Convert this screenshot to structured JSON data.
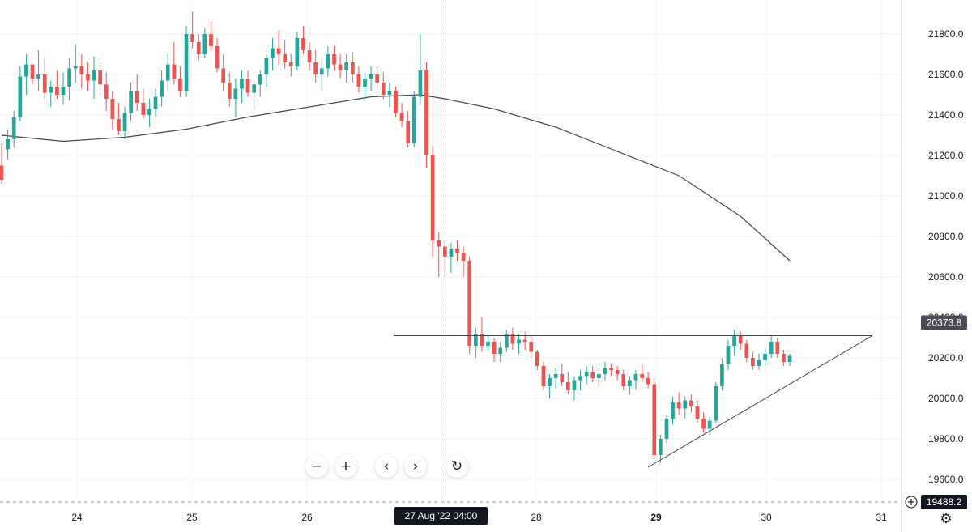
{
  "chart_data": {
    "type": "candlestick",
    "price_axis": {
      "ticks": [
        "21800.0",
        "21600.0",
        "21400.0",
        "21200.0",
        "21000.0",
        "20800.0",
        "20600.0",
        "20400.0",
        "20200.0",
        "20000.0",
        "19800.0",
        "19600.0"
      ],
      "tick_values": [
        21800,
        21600,
        21400,
        21200,
        21000,
        20800,
        20600,
        20400,
        20200,
        20000,
        19800,
        19600
      ],
      "ylim": [
        19488.2,
        21980
      ]
    },
    "time_axis": {
      "labels": [
        "24",
        "25",
        "26",
        "28",
        "29",
        "30",
        "31"
      ],
      "bold": [
        false,
        false,
        false,
        false,
        true,
        false,
        false
      ]
    },
    "crosshair_time_label": "27 Aug '22  04:00",
    "last_price_label": "20373.8",
    "last_price": 20373.8,
    "crosshair_price_label": "19488.2",
    "crosshair_price": 19488.2,
    "add_symbol_icon": "plus-circle-icon",
    "candle_series": [
      [
        21150,
        21260,
        21060,
        21080
      ],
      [
        21230,
        21330,
        21180,
        21280
      ],
      [
        21280,
        21420,
        21240,
        21390
      ],
      [
        21390,
        21640,
        21370,
        21590
      ],
      [
        21590,
        21700,
        21500,
        21650
      ],
      [
        21650,
        21640,
        21550,
        21580
      ],
      [
        21580,
        21720,
        21520,
        21600
      ],
      [
        21600,
        21680,
        21480,
        21510
      ],
      [
        21510,
        21570,
        21440,
        21540
      ],
      [
        21540,
        21620,
        21480,
        21500
      ],
      [
        21500,
        21610,
        21450,
        21540
      ],
      [
        21540,
        21680,
        21470,
        21630
      ],
      [
        21630,
        21750,
        21560,
        21640
      ],
      [
        21640,
        21700,
        21530,
        21600
      ],
      [
        21600,
        21660,
        21520,
        21570
      ],
      [
        21570,
        21690,
        21480,
        21620
      ],
      [
        21620,
        21660,
        21500,
        21550
      ],
      [
        21550,
        21610,
        21420,
        21480
      ],
      [
        21480,
        21520,
        21330,
        21380
      ],
      [
        21380,
        21460,
        21300,
        21320
      ],
      [
        21320,
        21440,
        21280,
        21410
      ],
      [
        21410,
        21560,
        21370,
        21520
      ],
      [
        21520,
        21600,
        21420,
        21460
      ],
      [
        21460,
        21530,
        21380,
        21400
      ],
      [
        21400,
        21480,
        21340,
        21430
      ],
      [
        21430,
        21530,
        21390,
        21490
      ],
      [
        21490,
        21620,
        21440,
        21570
      ],
      [
        21570,
        21700,
        21520,
        21650
      ],
      [
        21650,
        21760,
        21550,
        21580
      ],
      [
        21580,
        21640,
        21490,
        21520
      ],
      [
        21520,
        21840,
        21490,
        21800
      ],
      [
        21800,
        21910,
        21730,
        21760
      ],
      [
        21760,
        21800,
        21670,
        21700
      ],
      [
        21700,
        21830,
        21680,
        21800
      ],
      [
        21800,
        21860,
        21720,
        21740
      ],
      [
        21740,
        21780,
        21610,
        21630
      ],
      [
        21630,
        21700,
        21520,
        21560
      ],
      [
        21560,
        21610,
        21440,
        21480
      ],
      [
        21480,
        21580,
        21390,
        21530
      ],
      [
        21530,
        21620,
        21460,
        21580
      ],
      [
        21580,
        21620,
        21490,
        21510
      ],
      [
        21510,
        21570,
        21430,
        21550
      ],
      [
        21550,
        21620,
        21490,
        21600
      ],
      [
        21600,
        21700,
        21540,
        21680
      ],
      [
        21680,
        21780,
        21620,
        21730
      ],
      [
        21730,
        21820,
        21650,
        21700
      ],
      [
        21700,
        21770,
        21630,
        21660
      ],
      [
        21660,
        21700,
        21590,
        21640
      ],
      [
        21640,
        21810,
        21620,
        21780
      ],
      [
        21780,
        21840,
        21700,
        21720
      ],
      [
        21720,
        21760,
        21620,
        21660
      ],
      [
        21660,
        21720,
        21560,
        21600
      ],
      [
        21600,
        21680,
        21520,
        21630
      ],
      [
        21630,
        21740,
        21590,
        21700
      ],
      [
        21700,
        21740,
        21620,
        21650
      ],
      [
        21650,
        21700,
        21580,
        21620
      ],
      [
        21620,
        21700,
        21560,
        21660
      ],
      [
        21660,
        21710,
        21560,
        21600
      ],
      [
        21600,
        21640,
        21510,
        21540
      ],
      [
        21540,
        21610,
        21480,
        21580
      ],
      [
        21580,
        21640,
        21520,
        21600
      ],
      [
        21600,
        21640,
        21530,
        21560
      ],
      [
        21560,
        21610,
        21480,
        21500
      ],
      [
        21500,
        21560,
        21440,
        21520
      ],
      [
        21520,
        21540,
        21390,
        21410
      ],
      [
        21410,
        21460,
        21340,
        21370
      ],
      [
        21370,
        21420,
        21240,
        21260
      ],
      [
        21260,
        21520,
        21240,
        21490
      ],
      [
        21490,
        21800,
        21450,
        21620
      ],
      [
        21620,
        21660,
        21140,
        21200
      ],
      [
        21200,
        21250,
        20700,
        20780
      ],
      [
        20780,
        20820,
        20600,
        20750
      ],
      [
        20750,
        20780,
        20600,
        20700
      ],
      [
        20700,
        20770,
        20620,
        20740
      ],
      [
        20740,
        20780,
        20680,
        20720
      ],
      [
        20720,
        20750,
        20600,
        20680
      ],
      [
        20680,
        20700,
        20220,
        20260
      ],
      [
        20260,
        20350,
        20200,
        20320
      ],
      [
        20320,
        20400,
        20230,
        20260
      ],
      [
        20260,
        20310,
        20230,
        20280
      ],
      [
        20280,
        20300,
        20180,
        20220
      ],
      [
        20220,
        20280,
        20180,
        20250
      ],
      [
        20250,
        20340,
        20230,
        20320
      ],
      [
        20320,
        20350,
        20240,
        20270
      ],
      [
        20270,
        20320,
        20220,
        20290
      ],
      [
        20290,
        20330,
        20240,
        20280
      ],
      [
        20280,
        20310,
        20200,
        20230
      ],
      [
        20230,
        20240,
        20140,
        20160
      ],
      [
        20160,
        20180,
        20040,
        20060
      ],
      [
        20060,
        20120,
        20000,
        20100
      ],
      [
        20100,
        20150,
        20050,
        20120
      ],
      [
        20120,
        20170,
        20060,
        20080
      ],
      [
        20080,
        20130,
        20020,
        20040
      ],
      [
        20040,
        20110,
        19990,
        20090
      ],
      [
        20090,
        20140,
        20040,
        20110
      ],
      [
        20110,
        20160,
        20070,
        20130
      ],
      [
        20130,
        20160,
        20080,
        20100
      ],
      [
        20100,
        20150,
        20060,
        20120
      ],
      [
        20120,
        20180,
        20090,
        20150
      ],
      [
        20150,
        20170,
        20110,
        20140
      ],
      [
        20140,
        20160,
        20090,
        20120
      ],
      [
        20120,
        20140,
        20040,
        20060
      ],
      [
        20060,
        20110,
        20020,
        20090
      ],
      [
        20090,
        20140,
        20040,
        20120
      ],
      [
        20120,
        20170,
        20080,
        20100
      ],
      [
        20100,
        20130,
        20050,
        20070
      ],
      [
        20070,
        20100,
        19700,
        19720
      ],
      [
        19720,
        19820,
        19680,
        19800
      ],
      [
        19800,
        19920,
        19780,
        19900
      ],
      [
        19900,
        20010,
        19870,
        19980
      ],
      [
        19980,
        20030,
        19920,
        19950
      ],
      [
        19950,
        20010,
        19900,
        19990
      ],
      [
        19990,
        20020,
        19930,
        19960
      ],
      [
        19960,
        19990,
        19880,
        19900
      ],
      [
        19900,
        19930,
        19830,
        19850
      ],
      [
        19850,
        19910,
        19820,
        19890
      ],
      [
        19890,
        20080,
        19880,
        20060
      ],
      [
        20060,
        20200,
        20040,
        20170
      ],
      [
        20170,
        20290,
        20140,
        20260
      ],
      [
        20260,
        20340,
        20210,
        20310
      ],
      [
        20310,
        20330,
        20240,
        20270
      ],
      [
        20270,
        20290,
        20180,
        20200
      ],
      [
        20200,
        20230,
        20140,
        20160
      ],
      [
        20160,
        20220,
        20140,
        20190
      ],
      [
        20190,
        20250,
        20160,
        20220
      ],
      [
        20220,
        20310,
        20200,
        20280
      ],
      [
        20280,
        20300,
        20200,
        20220
      ],
      [
        20220,
        20240,
        20160,
        20180
      ],
      [
        20180,
        20220,
        20160,
        20210
      ]
    ],
    "moving_average": [
      [
        0,
        21300
      ],
      [
        10,
        21270
      ],
      [
        20,
        21290
      ],
      [
        30,
        21330
      ],
      [
        40,
        21390
      ],
      [
        50,
        21440
      ],
      [
        60,
        21490
      ],
      [
        68,
        21500
      ],
      [
        72,
        21480
      ],
      [
        80,
        21430
      ],
      [
        90,
        21340
      ],
      [
        100,
        21220
      ],
      [
        110,
        21100
      ],
      [
        120,
        20900
      ],
      [
        128,
        20680
      ]
    ],
    "horizontal_line": 20310,
    "trendline": [
      [
        105,
        19660
      ],
      [
        138,
        20310
      ]
    ]
  }
}
